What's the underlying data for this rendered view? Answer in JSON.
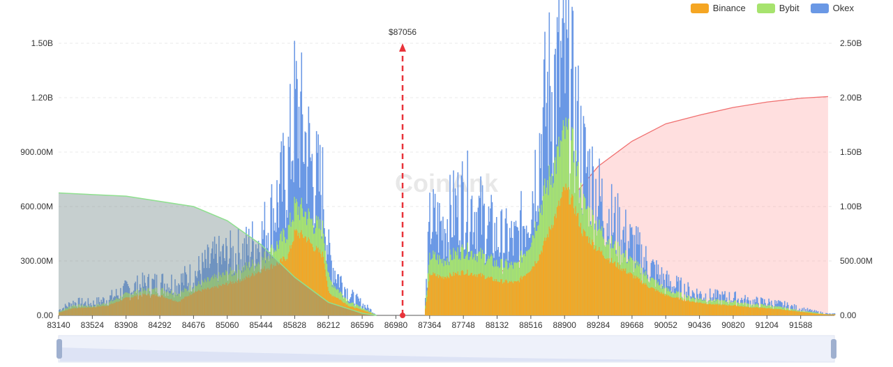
{
  "legend": {
    "items": [
      {
        "label": "Binance",
        "color": "#F5A623"
      },
      {
        "label": "Bybit",
        "color": "#A7E36E"
      },
      {
        "label": "Okex",
        "color": "#6A98E5"
      }
    ]
  },
  "current_price_label": "$87056",
  "watermark": "CoinAnk",
  "chart_data": {
    "type": "area",
    "x_ticks": [
      "83140",
      "83524",
      "83908",
      "84292",
      "84676",
      "85060",
      "85444",
      "85828",
      "86212",
      "86596",
      "86980",
      "87364",
      "87748",
      "88132",
      "88516",
      "88900",
      "89284",
      "89668",
      "90052",
      "90436",
      "90820",
      "91204",
      "91588"
    ],
    "xlim": [
      83140,
      91972
    ],
    "left_axis": {
      "ticks": [
        "0.00",
        "300.00M",
        "600.00M",
        "900.00M",
        "1.20B",
        "1.50B"
      ],
      "ylim": [
        0,
        1500000000
      ]
    },
    "right_axis": {
      "ticks": [
        "0.00",
        "500.00M",
        "1.00B",
        "1.50B",
        "2.00B",
        "2.50B"
      ],
      "ylim": [
        0,
        2500000000
      ]
    },
    "current_price": 87056,
    "series": [
      {
        "name": "Binance",
        "color": "#F5A623"
      },
      {
        "name": "Bybit",
        "color": "#A7E36E"
      },
      {
        "name": "Okex",
        "color": "#6A98E5"
      }
    ],
    "profile_points": {
      "x": [
        83140,
        83300,
        83524,
        83700,
        83908,
        84100,
        84292,
        84500,
        84676,
        84900,
        85060,
        85250,
        85444,
        85650,
        85750,
        85828,
        85950,
        86050,
        86150,
        86212,
        86300,
        86450,
        86596,
        86700,
        86760,
        87300,
        87364,
        87500,
        87748,
        87950,
        88132,
        88350,
        88516,
        88600,
        88700,
        88800,
        88900,
        89000,
        89100,
        89284,
        89450,
        89668,
        89850,
        90052,
        90300,
        90436,
        90600,
        90820,
        91000,
        91204,
        91400,
        91588,
        91750,
        91900
      ],
      "binance": [
        15,
        40,
        45,
        55,
        95,
        115,
        110,
        75,
        130,
        150,
        175,
        200,
        250,
        290,
        330,
        460,
        430,
        370,
        330,
        120,
        100,
        50,
        30,
        10,
        0,
        0,
        230,
        210,
        240,
        220,
        190,
        180,
        260,
        320,
        440,
        560,
        700,
        610,
        460,
        360,
        290,
        220,
        160,
        110,
        80,
        70,
        60,
        55,
        45,
        40,
        30,
        20,
        10,
        5
      ],
      "bybit": [
        20,
        55,
        50,
        70,
        115,
        135,
        140,
        120,
        160,
        200,
        230,
        260,
        300,
        400,
        470,
        600,
        560,
        500,
        470,
        200,
        150,
        70,
        40,
        15,
        0,
        0,
        330,
        300,
        360,
        330,
        280,
        270,
        420,
        560,
        720,
        850,
        1000,
        900,
        620,
        480,
        380,
        290,
        210,
        140,
        100,
        90,
        80,
        75,
        60,
        55,
        40,
        25,
        15,
        5
      ],
      "okex": [
        30,
        70,
        65,
        90,
        140,
        165,
        175,
        180,
        220,
        300,
        320,
        350,
        420,
        650,
        820,
        1130,
        950,
        750,
        680,
        320,
        230,
        110,
        60,
        25,
        0,
        0,
        520,
        480,
        650,
        540,
        420,
        400,
        650,
        900,
        1200,
        1300,
        1350,
        1150,
        850,
        640,
        500,
        380,
        270,
        180,
        130,
        115,
        100,
        95,
        75,
        70,
        55,
        35,
        20,
        8
      ]
    },
    "cumulative_short": {
      "x": [
        83140,
        83908,
        84676,
        85060,
        85444,
        85828,
        86212,
        86596,
        86760
      ],
      "y": [
        1125000000,
        1095000000,
        1000000000,
        870000000,
        650000000,
        350000000,
        120000000,
        20000000,
        0
      ]
    },
    "cumulative_long": {
      "x": [
        87364,
        87748,
        88132,
        88516,
        88900,
        89284,
        89668,
        90052,
        90436,
        90820,
        91204,
        91588,
        91900
      ],
      "y": [
        10000000,
        180000000,
        380000000,
        560000000,
        1000000000,
        1370000000,
        1600000000,
        1760000000,
        1840000000,
        1910000000,
        1960000000,
        1995000000,
        2010000000
      ]
    }
  }
}
